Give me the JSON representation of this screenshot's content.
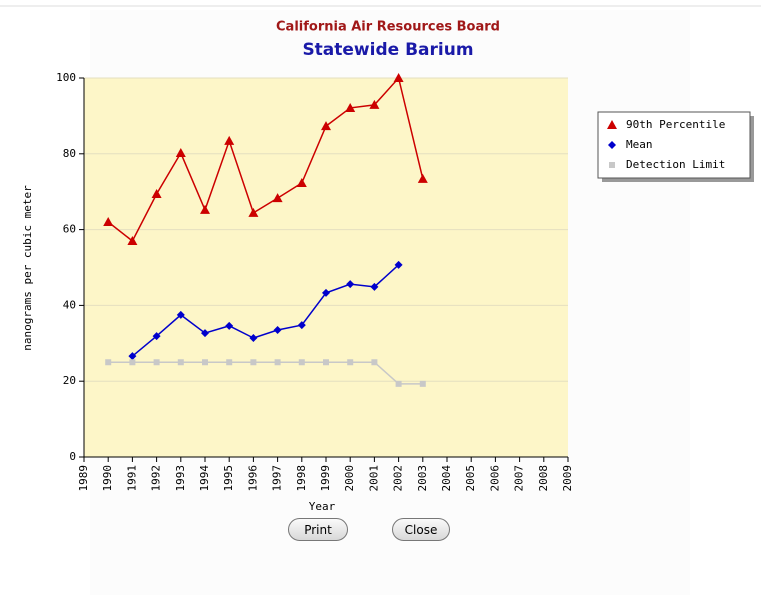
{
  "chart_data": {
    "type": "line",
    "title": "California Air Resources Board",
    "subtitle": "Statewide Barium",
    "xlabel": "Year",
    "ylabel": "nanograms per cubic meter",
    "x": [
      1990,
      1991,
      1992,
      1993,
      1994,
      1995,
      1996,
      1997,
      1998,
      1999,
      2000,
      2001,
      2002,
      2003
    ],
    "series": [
      {
        "name": "90th Percentile",
        "color": "#cc0000",
        "marker": "triangle",
        "values": [
          62,
          57,
          69.4,
          80.2,
          65.2,
          83.4,
          64.4,
          68.3,
          72.3,
          87.3,
          92.1,
          92.9,
          100,
          73.4
        ]
      },
      {
        "name": "Mean",
        "color": "#0000cc",
        "marker": "diamond",
        "values": [
          null,
          26.6,
          31.9,
          37.5,
          32.7,
          34.6,
          31.4,
          33.5,
          34.8,
          43.3,
          45.6,
          44.9,
          50.7,
          null
        ]
      },
      {
        "name": "Detection Limit",
        "color": "#c8c8c8",
        "marker": "square",
        "values": [
          25,
          25,
          25,
          25,
          25,
          25,
          25,
          25,
          25,
          25,
          25,
          25,
          19.3,
          19.3
        ]
      }
    ],
    "xlim": [
      1989,
      2009
    ],
    "xticks": [
      1989,
      1990,
      1991,
      1992,
      1993,
      1994,
      1995,
      1996,
      1997,
      1998,
      1999,
      2000,
      2001,
      2002,
      2003,
      2004,
      2005,
      2006,
      2007,
      2008,
      2009
    ],
    "ylim": [
      0,
      100
    ],
    "yticks": [
      0,
      20,
      40,
      60,
      80,
      100
    ],
    "grid": true,
    "legend": "right"
  },
  "buttons": [
    "Print",
    "Close"
  ]
}
